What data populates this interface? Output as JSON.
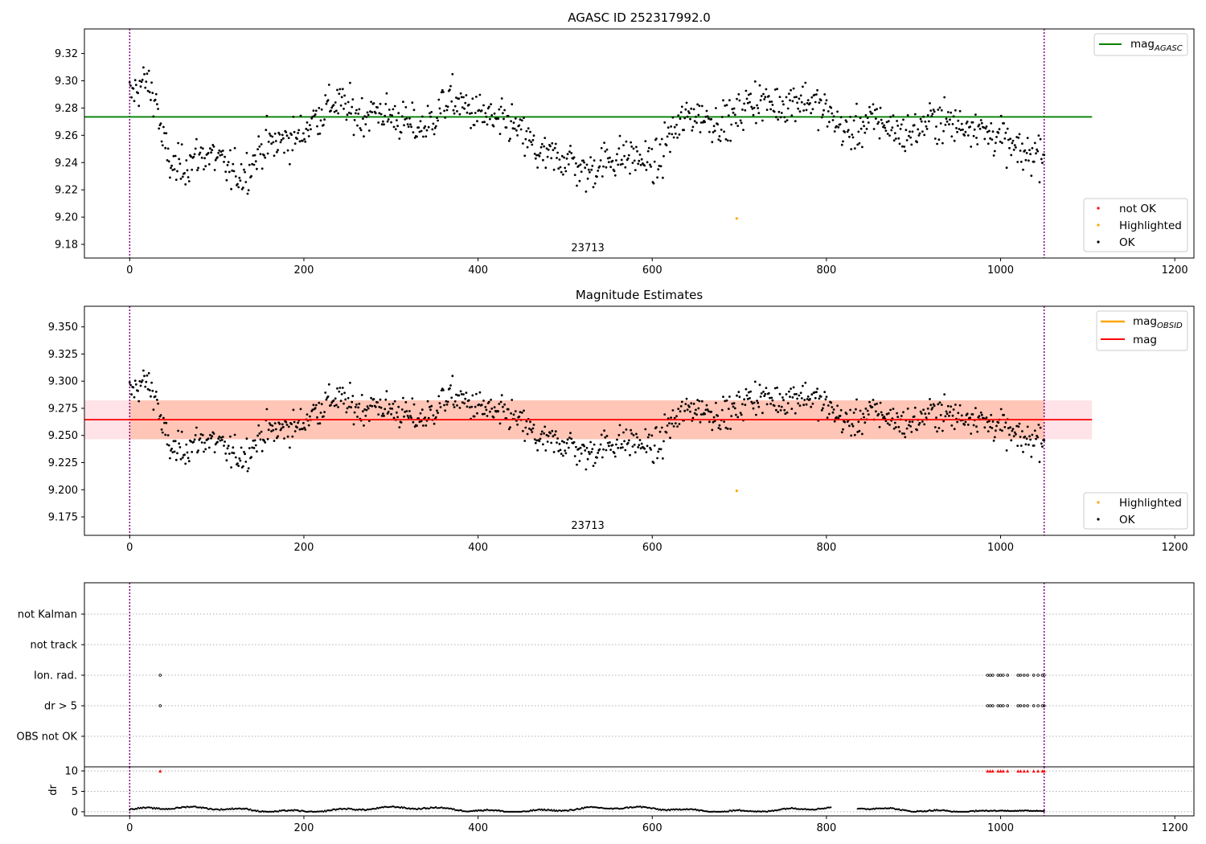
{
  "chart_data": [
    {
      "id": "agasc",
      "type": "scatter",
      "title": "AGASC ID 252317992.0",
      "xlim": [
        -52,
        1222
      ],
      "ylim": [
        9.17,
        9.338
      ],
      "xticks": [
        0,
        200,
        400,
        600,
        800,
        1000,
        1200
      ],
      "yticks": [
        9.18,
        9.2,
        9.22,
        9.24,
        9.26,
        9.28,
        9.3,
        9.32
      ],
      "ytick_decimals": 2,
      "annotation": "23713",
      "annotation_xy": [
        526,
        9.175
      ],
      "ref_line": {
        "label": "mag",
        "sub": "AGASC",
        "value": 9.2735,
        "x_end": 1105,
        "color": "#008000"
      },
      "vlines": [
        0,
        1050
      ],
      "vline_color": "#800080",
      "series": [
        {
          "name": "not OK",
          "color": "#ff0000",
          "x": [],
          "y": []
        },
        {
          "name": "Highlighted",
          "color": "#ffa500",
          "x": [
            697
          ],
          "y": [
            9.199
          ]
        },
        {
          "name": "OK",
          "color": "#000000",
          "generator": "magnitude_track"
        }
      ],
      "legend_line": "top-right",
      "legend_points": "bottom-right"
    },
    {
      "id": "estimates",
      "type": "scatter",
      "title": "Magnitude Estimates",
      "xlim": [
        -52,
        1222
      ],
      "ylim": [
        9.158,
        9.369
      ],
      "xticks": [
        0,
        200,
        400,
        600,
        800,
        1000,
        1200
      ],
      "yticks": [
        9.175,
        9.2,
        9.225,
        9.25,
        9.275,
        9.3,
        9.325,
        9.35
      ],
      "ytick_decimals": 3,
      "annotation": "23713",
      "annotation_xy": [
        526,
        9.164
      ],
      "mag_line": {
        "label": "mag",
        "value": 9.2645,
        "color": "#ff0000"
      },
      "obsid_line": {
        "label": "mag",
        "sub": "OBSID",
        "color": "#ffa500"
      },
      "bands": [
        {
          "y0": 9.2465,
          "y1": 9.2823,
          "x0": -52,
          "x1": 1105,
          "color": "#ffc0cb",
          "opacity": 0.45
        },
        {
          "y0": 9.2465,
          "y1": 9.2823,
          "x0": 0,
          "x1": 1050,
          "color": "#ffa07a",
          "opacity": 0.45
        }
      ],
      "vlines": [
        0,
        1050
      ],
      "vline_color": "#800080",
      "series": [
        {
          "name": "Highlighted",
          "color": "#ffa500",
          "x": [
            697
          ],
          "y": [
            9.199
          ]
        },
        {
          "name": "OK",
          "color": "#000000",
          "generator": "magnitude_track"
        }
      ],
      "legend_line": "top-right",
      "legend_points": "bottom-right"
    },
    {
      "id": "flags",
      "type": "scatter",
      "categories": [
        "not Kalman",
        "not track",
        "Ion. rad.",
        "dr > 5",
        "OBS not OK"
      ],
      "xlim": [
        -52,
        1222
      ],
      "flags": {
        "Ion. rad.": [
          35,
          985,
          988,
          991,
          997,
          1000,
          1003,
          1008,
          1020,
          1023,
          1027,
          1031,
          1038,
          1043,
          1048,
          1050
        ],
        "dr > 5": [
          35,
          985,
          988,
          991,
          997,
          1000,
          1003,
          1008,
          1020,
          1023,
          1027,
          1031,
          1038,
          1043,
          1048,
          1050
        ]
      },
      "vlines": [
        0,
        1050
      ],
      "vline_color": "#800080"
    },
    {
      "id": "dr",
      "type": "scatter",
      "ylabel": "dr",
      "xlim": [
        -52,
        1222
      ],
      "ylim": [
        -1,
        11
      ],
      "xticks": [
        0,
        200,
        400,
        600,
        800,
        1000,
        1200
      ],
      "yticks": [
        0,
        5,
        10
      ],
      "clipped_marker_color": "#ff0000",
      "clipped_x": [
        35,
        985,
        988,
        991,
        997,
        1000,
        1003,
        1008,
        1020,
        1023,
        1027,
        1031,
        1038,
        1043,
        1048,
        1050
      ],
      "clipped_value": 10,
      "series": [
        {
          "name": "dr",
          "color": "#000000",
          "generator": "dr_track"
        }
      ],
      "vlines": [
        0,
        1050
      ],
      "vline_color": "#800080"
    }
  ]
}
